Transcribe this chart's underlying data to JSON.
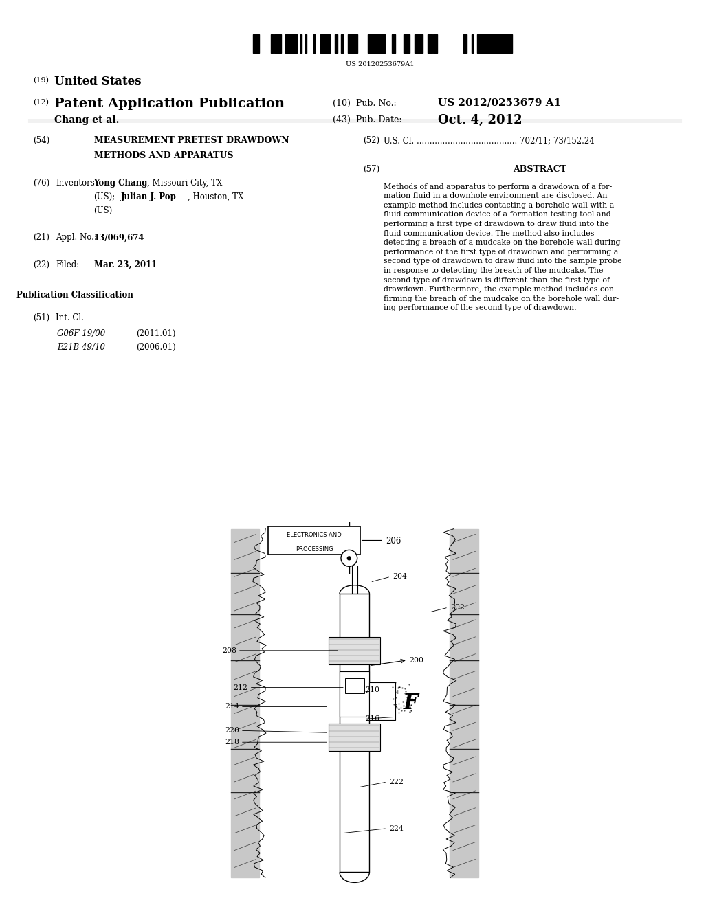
{
  "bg_color": "#ffffff",
  "barcode_text": "US 20120253679A1",
  "line19": "(19)  United States",
  "line12": "(12)  Patent Application Publication",
  "pub_no_label": "(10)  Pub. No.:",
  "pub_no": "US 2012/0253679 A1",
  "inventor_label": "Chang et al.",
  "pub_date_label": "(43)  Pub. Date:",
  "pub_date": "Oct. 4, 2012",
  "field54_label": "(54)",
  "field54": "MEASUREMENT PRETEST DRAWDOWN\nMETHODS AND APPARATUS",
  "field52_label": "(52)",
  "field52": "U.S. Cl. ....................................... 702/11; 73/152.24",
  "field57_label": "(57)",
  "field57_title": "ABSTRACT",
  "abstract": "Methods of and apparatus to perform a drawdown of a for-\nmation fluid in a downhole environment are disclosed. An\nexample method includes contacting a borehole wall with a\nfluid communication device of a formation testing tool and\nperforming a first type of drawdown to draw fluid into the\nfluid communication device. The method also includes\ndetecting a breach of a mudcake on the borehole wall during\nperformance of the first type of drawdown and performing a\nsecond type of drawdown to draw fluid into the sample probe\nin response to detecting the breach of the mudcake. The\nsecond type of drawdown is different than the first type of\ndrawdown. Furthermore, the example method includes con-\nfirming the breach of the mudcake on the borehole wall dur-\ning performance of the second type of drawdown.",
  "field76_label": "(76)",
  "field76_title": "Inventors:",
  "field76": "Yong Chang, Missouri City, TX\n(US); Julian J. Pop, Houston, TX\n(US)",
  "field21_label": "(21)",
  "field21_title": "Appl. No.:",
  "field21": "13/069,674",
  "field22_label": "(22)",
  "field22_title": "Filed:",
  "field22": "Mar. 23, 2011",
  "pub_class_title": "Publication Classification",
  "field51_label": "(51)",
  "field51_title": "Int. Cl.",
  "field51_a": "G06F 19/00",
  "field51_a_year": "(2011.01)",
  "field51_b": "E21B 49/10",
  "field51_b_year": "(2006.01)"
}
